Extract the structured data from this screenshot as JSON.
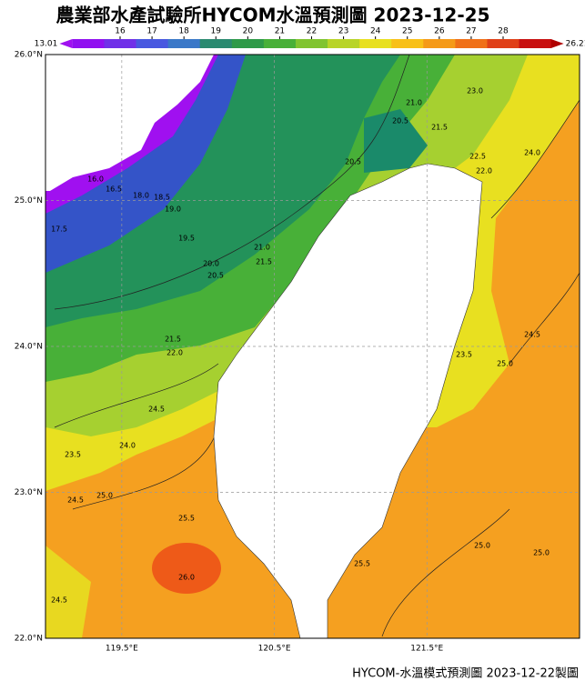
{
  "title": "農業部水產試驗所HYCOM水溫預測圖 2023-12-25",
  "colorbar": {
    "min_label": 13.01,
    "max_label": 26.21,
    "ticks": [
      16,
      17,
      18,
      19,
      20,
      21,
      22,
      23,
      24,
      25,
      26,
      27,
      28
    ]
  },
  "map": {
    "ylim": [
      22,
      26
    ],
    "xlim": [
      119,
      122.5
    ],
    "lat_ticks": [
      {
        "value": 26,
        "label": "26.0°N"
      },
      {
        "value": 25,
        "label": "25.0°N"
      },
      {
        "value": 24,
        "label": "24.0°N"
      },
      {
        "value": 23,
        "label": "23.0°N"
      },
      {
        "value": 22,
        "label": "22.0°N"
      }
    ],
    "lon_ticks": [
      {
        "value": 119.5,
        "label": "119.5°E"
      },
      {
        "value": 120.5,
        "label": "120.5°E"
      },
      {
        "value": 121.5,
        "label": "121.5°E"
      }
    ],
    "contour_labels": [
      "16.0",
      "16.5",
      "17.5",
      "18.0",
      "18.5",
      "19.0",
      "19.5",
      "20.0",
      "20.5",
      "21.0",
      "21.5",
      "20.5",
      "20.5",
      "21.0",
      "21.5",
      "22.5",
      "22.0",
      "23.0",
      "24.0",
      "21.5",
      "22.0",
      "24.5",
      "24.0",
      "23.5",
      "24.5",
      "25.0",
      "25.5",
      "26.0",
      "24.5",
      "23.5",
      "24.5",
      "25.0",
      "25.0",
      "25.0",
      "25.5"
    ]
  },
  "footer": "HYCOM-水溫模式預測圖 2023-12-22製圖"
}
